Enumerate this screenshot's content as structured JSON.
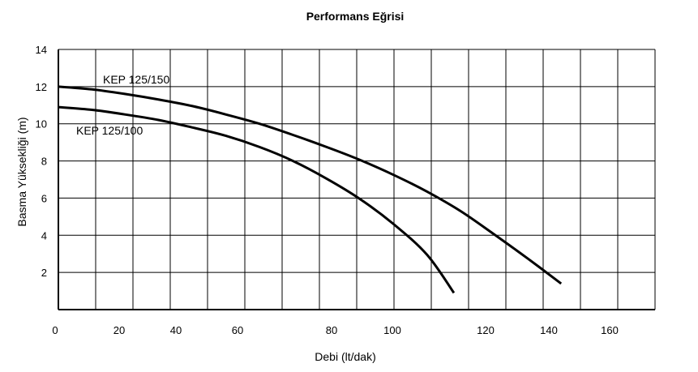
{
  "chart_data": {
    "type": "line",
    "title": "Performans Eğrisi",
    "xlabel": "Debi (lt/dak)",
    "ylabel": "Basma Yüksekliği (m)",
    "ylim": [
      0,
      14
    ],
    "y_ticks": [
      "2",
      "4",
      "6",
      "8",
      "10",
      "12",
      "14"
    ],
    "x_ticks": [
      "0",
      "20",
      "40",
      "60",
      "80",
      "100",
      "120",
      "140",
      "160"
    ],
    "grid": true,
    "legend": "none",
    "series": [
      {
        "name": "KEP 125/150",
        "x": [
          0,
          10,
          20,
          30,
          40,
          50,
          60,
          70,
          80,
          90,
          100,
          110,
          120,
          130,
          140,
          150
        ],
        "values": [
          12.0,
          11.85,
          11.6,
          11.3,
          10.95,
          10.5,
          10.0,
          9.4,
          8.75,
          8.05,
          7.25,
          6.35,
          5.3,
          4.05,
          2.75,
          1.4
        ]
      },
      {
        "name": "KEP 125/100",
        "x": [
          0,
          10,
          20,
          30,
          40,
          50,
          60,
          70,
          80,
          90,
          100,
          110,
          118
        ],
        "values": [
          10.9,
          10.75,
          10.5,
          10.2,
          9.8,
          9.35,
          8.75,
          8.0,
          7.05,
          5.95,
          4.6,
          2.95,
          0.9
        ]
      }
    ]
  }
}
